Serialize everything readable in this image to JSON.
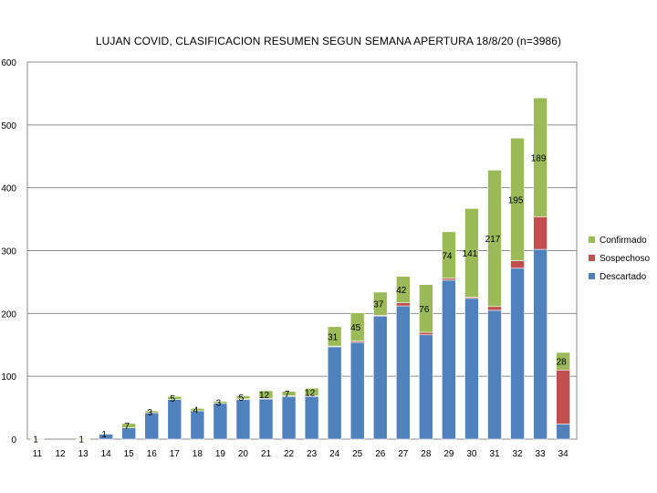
{
  "chart_data": {
    "type": "bar",
    "stacked": true,
    "title": "LUJAN COVID, CLASIFICACION RESUMEN SEGUN SEMANA APERTURA 18/8/20 (n=3986)",
    "xlabel": "",
    "ylabel": "",
    "ylim": [
      0,
      600
    ],
    "yticks": [
      "0",
      "100",
      "200",
      "300",
      "400",
      "500",
      "600"
    ],
    "categories": [
      "11",
      "12",
      "13",
      "14",
      "15",
      "16",
      "17",
      "18",
      "19",
      "20",
      "21",
      "22",
      "23",
      "24",
      "25",
      "26",
      "27",
      "28",
      "29",
      "30",
      "31",
      "32",
      "33",
      "34"
    ],
    "grid": true,
    "legend_position": "right",
    "series": [
      {
        "name": "Descartado",
        "color": "#4f81bd",
        "values": [
          0,
          0,
          0,
          8,
          18,
          42,
          63,
          45,
          57,
          63,
          64,
          68,
          68,
          147,
          154,
          196,
          212,
          166,
          253,
          224,
          205,
          272,
          302,
          24
        ]
      },
      {
        "name": "Sospechoso",
        "color": "#c0504d",
        "values": [
          0,
          0,
          0,
          0,
          0,
          0,
          0,
          0,
          0,
          1,
          1,
          1,
          1,
          1,
          2,
          1,
          5,
          4,
          3,
          2,
          6,
          12,
          52,
          86
        ]
      },
      {
        "name": "Confirmado",
        "color": "#9bbb59",
        "values": [
          1,
          0,
          1,
          1,
          7,
          3,
          5,
          4,
          3,
          5,
          12,
          7,
          12,
          31,
          45,
          37,
          42,
          76,
          74,
          141,
          217,
          195,
          189,
          28
        ]
      }
    ],
    "data_labels": [
      "1",
      "",
      "1",
      "1",
      "7",
      "3",
      "5",
      "4",
      "3",
      "5",
      "12",
      "7",
      "12",
      "31",
      "45",
      "37",
      "42",
      "76",
      "74",
      "141",
      "217",
      "195",
      "189",
      "28"
    ]
  }
}
